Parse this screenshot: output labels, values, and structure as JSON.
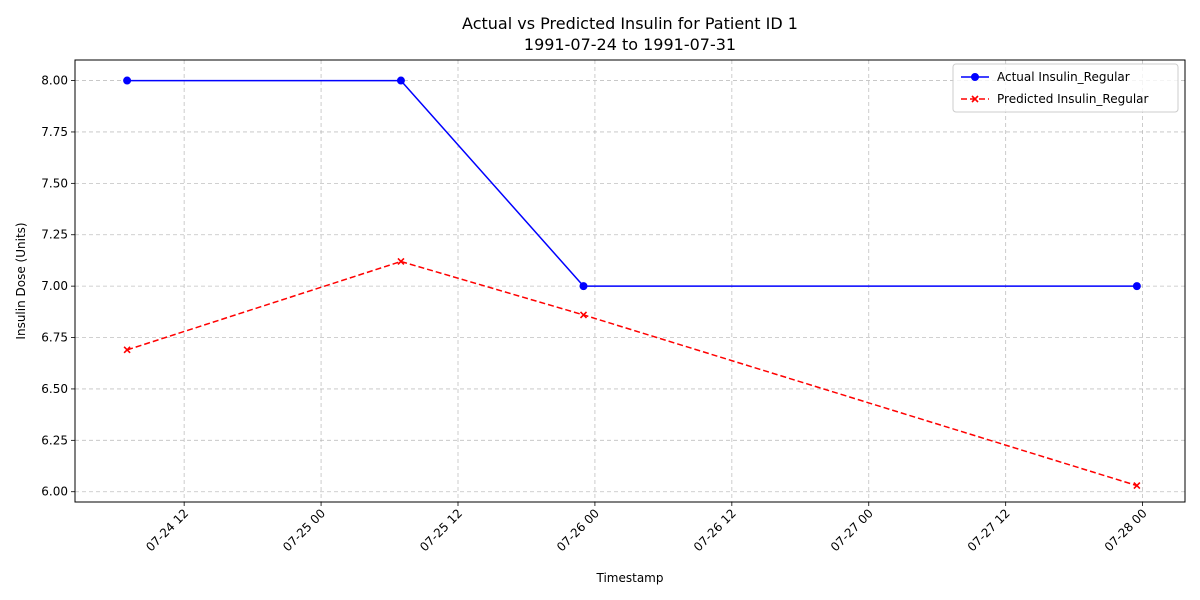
{
  "chart_data": {
    "type": "line",
    "title": "Actual vs Predicted Insulin for Patient ID 1",
    "subtitle": "1991-07-24 to 1991-07-31",
    "xlabel": "Timestamp",
    "ylabel": "Insulin Dose (Units)",
    "x_ticks": [
      "07-24 12",
      "07-25 00",
      "07-25 12",
      "07-26 00",
      "07-26 12",
      "07-27 00",
      "07-27 12",
      "07-28 00"
    ],
    "x_tick_values": [
      "1991-07-24 12:00",
      "1991-07-25 00:00",
      "1991-07-25 12:00",
      "1991-07-26 00:00",
      "1991-07-26 12:00",
      "1991-07-27 00:00",
      "1991-07-27 12:00",
      "1991-07-28 00:00"
    ],
    "xlim": [
      "1991-07-24 02:26",
      "1991-07-28 03:43"
    ],
    "y_ticks": [
      "6.00",
      "6.25",
      "6.50",
      "6.75",
      "7.00",
      "7.25",
      "7.50",
      "7.75",
      "8.00"
    ],
    "y_tick_values": [
      6.0,
      6.25,
      6.5,
      6.75,
      7.0,
      7.25,
      7.5,
      7.75,
      8.0
    ],
    "ylim": [
      5.95,
      8.1
    ],
    "grid": true,
    "legend_position": "top-right",
    "series": [
      {
        "name": "Actual Insulin_Regular",
        "color": "#0000ff",
        "line_style": "solid",
        "marker": "circle",
        "x": [
          "1991-07-24 07:00",
          "1991-07-25 07:00",
          "1991-07-25 23:00",
          "1991-07-27 23:30"
        ],
        "y": [
          8.0,
          8.0,
          7.0,
          7.0
        ]
      },
      {
        "name": "Predicted Insulin_Regular",
        "color": "#ff0000",
        "line_style": "dashed",
        "marker": "x",
        "x": [
          "1991-07-24 07:00",
          "1991-07-25 07:00",
          "1991-07-25 23:00",
          "1991-07-27 23:30"
        ],
        "y": [
          6.69,
          7.12,
          6.86,
          6.03
        ]
      }
    ]
  }
}
